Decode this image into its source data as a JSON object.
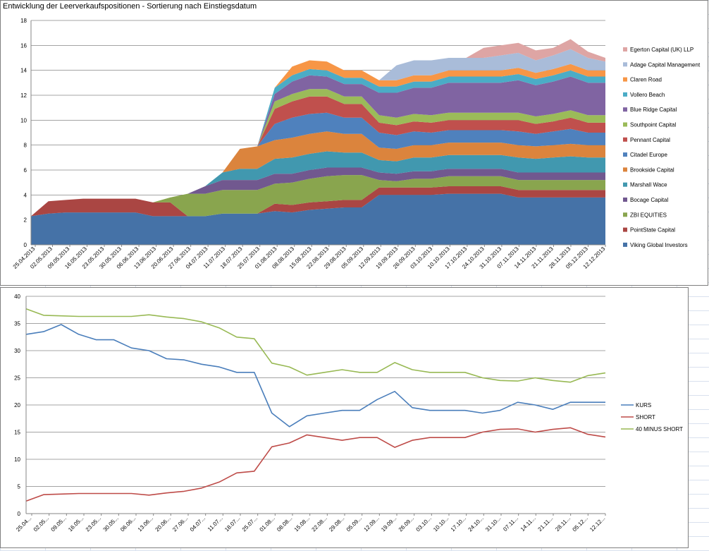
{
  "window": {
    "sheet": "Excel worksheet"
  },
  "chart_data": [
    {
      "type": "area",
      "stacked": true,
      "title": "Entwicklung der Leerverkaufspositionen - Sortierung nach Einstiegsdatum",
      "ylim": [
        0,
        18
      ],
      "yticks": [
        "0",
        "2",
        "4",
        "6",
        "8",
        "10",
        "12",
        "14",
        "16",
        "18"
      ],
      "xtick_labels": [
        "25.04.2013",
        "02.05.2013",
        "09.05.2013",
        "16.05.2013",
        "23.05.2013",
        "30.05.2013",
        "06.06.2013",
        "13.06.2013",
        "20.06.2013",
        "27.06.2013",
        "04.07.2013",
        "11.07.2013",
        "18.07.2013",
        "25.07.2013",
        "01.08.2013",
        "08.08.2013",
        "15.08.2013",
        "22.08.2013",
        "29.08.2013",
        "05.09.2013",
        "12.09.2013",
        "19.09.2013",
        "26.09.2013",
        "03.10.2013",
        "10.10.2013",
        "17.10.2013",
        "24.10.2013",
        "31.10.2013",
        "07.11.2013",
        "14.11.2013",
        "21.11.2013",
        "28.11.2013",
        "05.12.2013",
        "12.12.2013"
      ],
      "legend_position": "right",
      "series": [
        {
          "name": "Viking Global Investors",
          "color": "#4572a7",
          "values": [
            2.3,
            2.5,
            2.6,
            2.6,
            2.6,
            2.6,
            2.6,
            2.3,
            2.3,
            2.3,
            2.3,
            2.5,
            2.5,
            2.5,
            2.7,
            2.6,
            2.8,
            2.9,
            3.0,
            3.0,
            4.0,
            4.0,
            4.0,
            4.0,
            4.1,
            4.1,
            4.1,
            4.1,
            3.8,
            3.8,
            3.8,
            3.8,
            3.8,
            3.8
          ]
        },
        {
          "name": "PointState Capital",
          "color": "#aa4643",
          "values": [
            0.0,
            1.0,
            1.0,
            1.1,
            1.1,
            1.1,
            1.1,
            1.1,
            1.1,
            0.0,
            0.0,
            0.0,
            0.0,
            0.0,
            0.6,
            0.6,
            0.6,
            0.6,
            0.6,
            0.6,
            0.6,
            0.6,
            0.6,
            0.6,
            0.6,
            0.6,
            0.6,
            0.6,
            0.6,
            0.6,
            0.6,
            0.6,
            0.6,
            0.6
          ]
        },
        {
          "name": "ZBI EQUITIES",
          "color": "#89a54e",
          "values": [
            0,
            0,
            0,
            0,
            0,
            0,
            0,
            0,
            0.4,
            1.8,
            1.8,
            1.9,
            1.9,
            1.9,
            1.6,
            1.8,
            1.9,
            2.0,
            2.0,
            2.0,
            0.6,
            0.5,
            0.7,
            0.7,
            0.8,
            0.8,
            0.8,
            0.8,
            0.8,
            0.8,
            0.8,
            0.8,
            0.8,
            0.8
          ]
        },
        {
          "name": "Bocage Capital",
          "color": "#71588f",
          "values": [
            0,
            0,
            0,
            0,
            0,
            0,
            0,
            0,
            0,
            0,
            0.6,
            0.8,
            0.8,
            0.8,
            0.8,
            0.7,
            0.7,
            0.7,
            0.6,
            0.6,
            0.6,
            0.6,
            0.6,
            0.6,
            0.6,
            0.6,
            0.6,
            0.6,
            0.6,
            0.6,
            0.6,
            0.6,
            0.6,
            0.6
          ]
        },
        {
          "name": "Marshall Wace",
          "color": "#4198af",
          "values": [
            0,
            0,
            0,
            0,
            0,
            0,
            0,
            0,
            0,
            0,
            0,
            0.6,
            0.9,
            0.9,
            1.2,
            1.3,
            1.3,
            1.3,
            1.2,
            1.2,
            1.0,
            1.0,
            1.1,
            1.1,
            1.1,
            1.1,
            1.1,
            1.1,
            1.2,
            1.1,
            1.2,
            1.3,
            1.2,
            1.2
          ]
        },
        {
          "name": "Brookside Capital",
          "color": "#db843d",
          "values": [
            0,
            0,
            0,
            0,
            0,
            0,
            0,
            0,
            0,
            0,
            0,
            0,
            1.6,
            1.8,
            1.5,
            1.6,
            1.6,
            1.6,
            1.5,
            1.5,
            1.0,
            1.0,
            1.0,
            1.0,
            1.0,
            1.0,
            1.0,
            1.0,
            1.0,
            1.0,
            1.0,
            1.0,
            1.0,
            1.0
          ]
        },
        {
          "name": "Citadel Europe",
          "color": "#4f81bd",
          "values": [
            0,
            0,
            0,
            0,
            0,
            0,
            0,
            0,
            0,
            0,
            0,
            0,
            0,
            0,
            1.3,
            1.6,
            1.6,
            1.5,
            1.3,
            1.3,
            1.2,
            1.1,
            1.1,
            1.0,
            1.0,
            1.0,
            1.0,
            1.0,
            1.1,
            1.0,
            1.1,
            1.2,
            1.0,
            1.0
          ]
        },
        {
          "name": "Pennant Capital",
          "color": "#c0504d",
          "values": [
            0,
            0,
            0,
            0,
            0,
            0,
            0,
            0,
            0,
            0,
            0,
            0,
            0,
            0,
            1.2,
            1.3,
            1.4,
            1.3,
            1.1,
            1.1,
            0.8,
            0.8,
            0.8,
            0.8,
            0.8,
            0.8,
            0.8,
            0.8,
            0.9,
            0.8,
            0.8,
            0.9,
            0.8,
            0.8
          ]
        },
        {
          "name": "Southpoint Capital",
          "color": "#9bbb59",
          "values": [
            0,
            0,
            0,
            0,
            0,
            0,
            0,
            0,
            0,
            0,
            0,
            0,
            0,
            0,
            0.6,
            0.6,
            0.6,
            0.6,
            0.6,
            0.6,
            0.6,
            0.6,
            0.6,
            0.6,
            0.6,
            0.6,
            0.6,
            0.6,
            0.6,
            0.6,
            0.6,
            0.6,
            0.6,
            0.6
          ]
        },
        {
          "name": "Blue Ridge Capital",
          "color": "#8064a2",
          "values": [
            0,
            0,
            0,
            0,
            0,
            0,
            0,
            0,
            0,
            0,
            0,
            0,
            0,
            0,
            0.6,
            1.0,
            1.1,
            1.0,
            1.0,
            1.0,
            1.8,
            2.0,
            2.1,
            2.2,
            2.4,
            2.4,
            2.4,
            2.4,
            2.6,
            2.5,
            2.6,
            2.7,
            2.6,
            2.6
          ]
        },
        {
          "name": "Vollero Beach",
          "color": "#4bacc6",
          "values": [
            0,
            0,
            0,
            0,
            0,
            0,
            0,
            0,
            0,
            0,
            0,
            0,
            0,
            0,
            0.5,
            0.5,
            0.5,
            0.5,
            0.5,
            0.5,
            0.5,
            0.5,
            0.5,
            0.5,
            0.5,
            0.5,
            0.5,
            0.5,
            0.5,
            0.5,
            0.5,
            0.5,
            0.5,
            0.5
          ]
        },
        {
          "name": "Claren Road",
          "color": "#f79646",
          "values": [
            0,
            0,
            0,
            0,
            0,
            0,
            0,
            0,
            0,
            0,
            0,
            0,
            0,
            0,
            0,
            0.7,
            0.7,
            0.7,
            0.6,
            0.6,
            0.5,
            0.5,
            0.5,
            0.5,
            0.5,
            0.5,
            0.5,
            0.5,
            0.5,
            0.5,
            0.5,
            0.5,
            0.5,
            0.5
          ]
        },
        {
          "name": "Adage Capital Management",
          "color": "#a9bcd9",
          "values": [
            0,
            0,
            0,
            0,
            0,
            0,
            0,
            0,
            0,
            0,
            0,
            0,
            0,
            0,
            0,
            0,
            0,
            0,
            0,
            0,
            0,
            1.2,
            1.2,
            1.2,
            1.0,
            1.0,
            1.0,
            1.2,
            1.2,
            1.0,
            1.1,
            1.2,
            1.0,
            0.7
          ]
        },
        {
          "name": "Egerton Capital (UK) LLP",
          "color": "#dea5a4",
          "values": [
            0,
            0,
            0,
            0,
            0,
            0,
            0,
            0,
            0,
            0,
            0,
            0,
            0,
            0,
            0,
            0,
            0,
            0,
            0,
            0,
            0,
            0,
            0,
            0,
            0,
            0,
            0.8,
            0.8,
            0.8,
            0.8,
            0.6,
            0.8,
            0.5,
            0.3
          ]
        }
      ]
    },
    {
      "type": "line",
      "title": "",
      "ylim": [
        0,
        40
      ],
      "yticks": [
        "0",
        "5",
        "10",
        "15",
        "20",
        "25",
        "30",
        "35",
        "40"
      ],
      "xtick_labels": [
        "25.04...",
        "02.05...",
        "09.05...",
        "16.05...",
        "23.05...",
        "30.05...",
        "06.06...",
        "13.06...",
        "20.06...",
        "27.06...",
        "04.07...",
        "11.07...",
        "18.07...",
        "25.07...",
        "01.08...",
        "08.08...",
        "15.08...",
        "22.08...",
        "29.08...",
        "05.09...",
        "12.09...",
        "19.09...",
        "26.09...",
        "03.10...",
        "10.10...",
        "17.10...",
        "24.10...",
        "31.10...",
        "07.11...",
        "14.11...",
        "21.11...",
        "28.11...",
        "05.12...",
        "12.12..."
      ],
      "legend_position": "right",
      "series": [
        {
          "name": "KURS",
          "color": "#4a7ebb",
          "values": [
            33.0,
            33.5,
            34.8,
            33.0,
            32.0,
            32.0,
            30.5,
            30.0,
            28.5,
            28.3,
            27.5,
            27.0,
            26.0,
            26.0,
            18.5,
            16.0,
            18.0,
            18.5,
            19.0,
            19.0,
            21.0,
            22.5,
            19.5,
            19.0,
            19.0,
            19.0,
            18.5,
            19.0,
            20.5,
            20.0,
            19.2,
            20.5,
            20.5,
            20.5
          ]
        },
        {
          "name": "SHORT",
          "color": "#be4b48",
          "values": [
            2.3,
            3.5,
            3.6,
            3.7,
            3.7,
            3.7,
            3.7,
            3.4,
            3.8,
            4.1,
            4.7,
            5.8,
            7.5,
            7.8,
            12.3,
            13.0,
            14.5,
            14.0,
            13.5,
            14.0,
            14.0,
            12.2,
            13.5,
            14.0,
            14.0,
            14.0,
            15.0,
            15.5,
            15.6,
            15.0,
            15.5,
            15.8,
            14.6,
            14.1
          ]
        },
        {
          "name": "40 MINUS SHORT",
          "color": "#98b954",
          "values": [
            37.7,
            36.5,
            36.4,
            36.3,
            36.3,
            36.3,
            36.3,
            36.6,
            36.2,
            35.9,
            35.3,
            34.2,
            32.5,
            32.2,
            27.7,
            27.0,
            25.5,
            26.0,
            26.5,
            26.0,
            26.0,
            27.8,
            26.5,
            26.0,
            26.0,
            26.0,
            25.0,
            24.5,
            24.4,
            25.0,
            24.5,
            24.2,
            25.4,
            25.9
          ]
        }
      ]
    }
  ]
}
